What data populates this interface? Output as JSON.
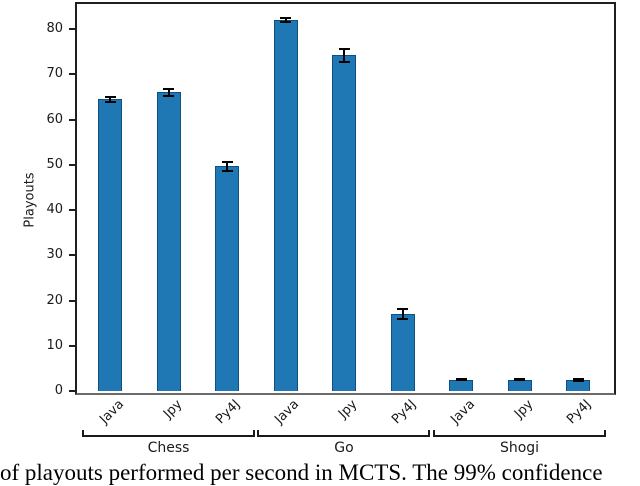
{
  "figure": {
    "ylabel": "Playouts",
    "caption_visible": "of playouts performed per second in MCTS. The 99% confidence",
    "colors": {
      "bar_fill": "#1f77b4",
      "bar_edge": "#10507e",
      "error_bar": "#000000",
      "axis": "#1f1f1f",
      "baseline": "#6b6b6b"
    }
  },
  "chart_data": {
    "type": "bar",
    "title": "",
    "xlabel": "",
    "ylabel": "Playouts",
    "ylim": [
      0,
      86
    ],
    "yticks": [
      0,
      10,
      20,
      30,
      40,
      50,
      60,
      70,
      80
    ],
    "grid": false,
    "legend": "none",
    "groups": [
      "Chess",
      "Go",
      "Shogi"
    ],
    "bar_labels": [
      "Java",
      "Jpy",
      "Py4J"
    ],
    "bars": [
      {
        "group": "Chess",
        "label": "Java",
        "value": 64.5,
        "error": 0.5
      },
      {
        "group": "Chess",
        "label": "Jpy",
        "value": 66.0,
        "error": 0.7
      },
      {
        "group": "Chess",
        "label": "Py4J",
        "value": 49.7,
        "error": 1.0
      },
      {
        "group": "Go",
        "label": "Java",
        "value": 82.0,
        "error": 0.4
      },
      {
        "group": "Go",
        "label": "Jpy",
        "value": 74.2,
        "error": 1.4
      },
      {
        "group": "Go",
        "label": "Py4J",
        "value": 17.0,
        "error": 1.1
      },
      {
        "group": "Shogi",
        "label": "Java",
        "value": 2.5,
        "error": 0.15
      },
      {
        "group": "Shogi",
        "label": "Jpy",
        "value": 2.5,
        "error": 0.15
      },
      {
        "group": "Shogi",
        "label": "Py4J",
        "value": 2.4,
        "error": 0.15
      }
    ]
  }
}
